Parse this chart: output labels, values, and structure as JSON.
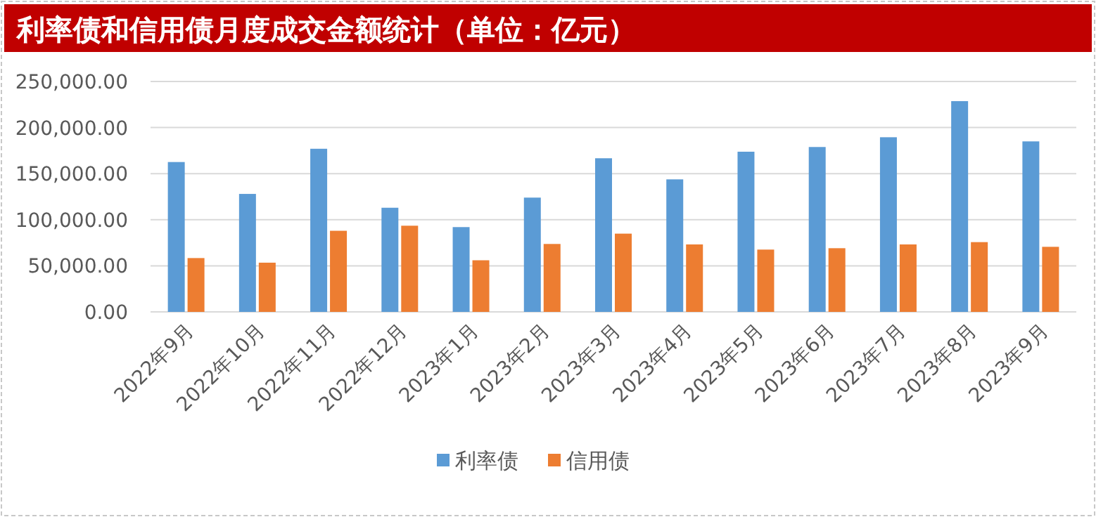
{
  "chart_data": {
    "type": "bar",
    "title": "利率债和信用债月度成交金额统计（单位：亿元）",
    "categories": [
      "2022年9月",
      "2022年10月",
      "2022年11月",
      "2022年12月",
      "2023年1月",
      "2023年2月",
      "2023年3月",
      "2023年4月",
      "2023年5月",
      "2023年6月",
      "2023年7月",
      "2023年8月",
      "2023年9月"
    ],
    "series": [
      {
        "name": "利率债",
        "color": "#5b9bd5",
        "values": [
          162600,
          128000,
          177000,
          113000,
          92000,
          124000,
          166700,
          143800,
          173800,
          178900,
          189500,
          228700,
          185000
        ]
      },
      {
        "name": "信用债",
        "color": "#ed7d31",
        "values": [
          58400,
          53400,
          88000,
          93500,
          56000,
          73700,
          84900,
          73200,
          67600,
          69100,
          73200,
          75700,
          70600
        ]
      }
    ],
    "ylim": [
      0,
      250000
    ],
    "yticks": [
      {
        "value": 0,
        "label": "0.00"
      },
      {
        "value": 50000,
        "label": "50,000.00"
      },
      {
        "value": 100000,
        "label": "100,000.00"
      },
      {
        "value": 150000,
        "label": "150,000.00"
      },
      {
        "value": 200000,
        "label": "200,000.00"
      },
      {
        "value": 250000,
        "label": "250,000.00"
      }
    ],
    "grid": "y",
    "legend": "bottom"
  }
}
